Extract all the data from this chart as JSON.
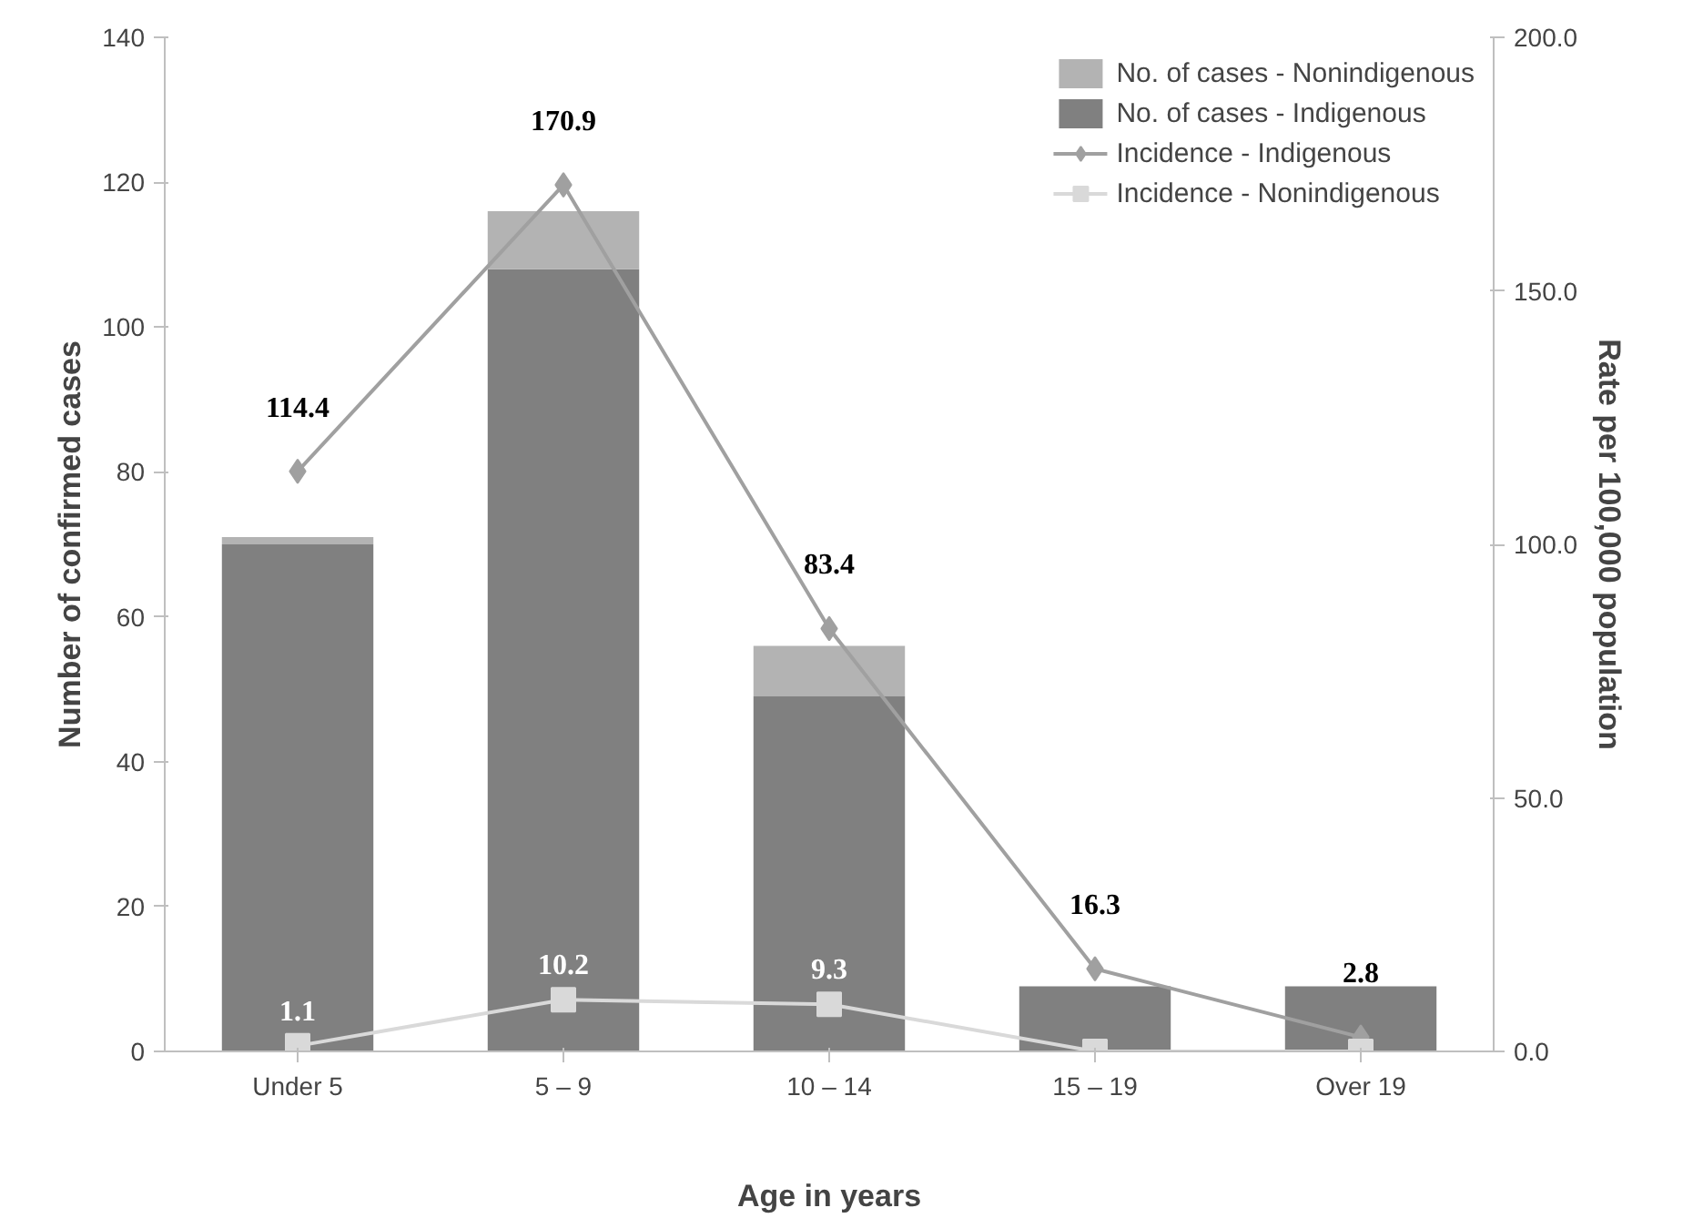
{
  "chart_data": {
    "type": "bar",
    "stacked": true,
    "xlabel": "Age in years",
    "ylabel": "Number of confirmed cases",
    "y2label": "Rate per 100,000 population",
    "categories": [
      "Under 5",
      "5 – 9",
      "10 – 14",
      "15 – 19",
      "Over 19"
    ],
    "series": [
      {
        "name": "No. of cases - Indigenous",
        "color": "#808080",
        "values": [
          70,
          108,
          49,
          9,
          9
        ]
      },
      {
        "name": "No. of cases - Nonindigenous",
        "color": "#b3b3b3",
        "values": [
          1,
          8,
          7,
          0,
          0
        ]
      },
      {
        "name": "Incidence - Indigenous",
        "type": "line",
        "axis": "y2",
        "marker": "diamond",
        "color": "#a0a0a0",
        "values": [
          114.4,
          170.9,
          83.4,
          16.3,
          2.8
        ],
        "value_labels": [
          "114.4",
          "170.9",
          "83.4",
          "16.3",
          "2.8"
        ]
      },
      {
        "name": "Incidence - Nonindigenous",
        "type": "line",
        "axis": "y2",
        "marker": "square",
        "color": "#d9d9d9",
        "values": [
          1.1,
          10.2,
          9.3,
          0,
          0
        ],
        "value_labels": [
          "1.1",
          "10.2",
          "9.3",
          null,
          null
        ]
      }
    ],
    "ylim": [
      0,
      140
    ],
    "yticks": [
      0,
      20,
      40,
      60,
      80,
      100,
      120,
      140
    ],
    "y2lim": [
      0,
      200
    ],
    "y2ticks": [
      {
        "value": 0,
        "label": "0.0"
      },
      {
        "value": 50,
        "label": "50.0"
      },
      {
        "value": 100,
        "label": "100.0"
      },
      {
        "value": 150,
        "label": "150.0"
      },
      {
        "value": 200,
        "label": "200.0"
      }
    ],
    "legend": "top right",
    "grid": false
  }
}
